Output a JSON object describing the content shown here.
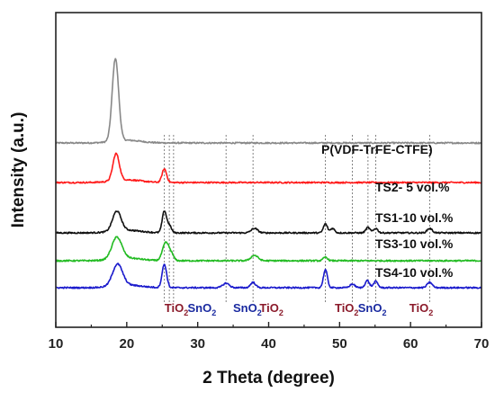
{
  "chart_data": {
    "type": "line",
    "title": "",
    "xlabel": "2 Theta (degree)",
    "ylabel": "Intensity (a.u.)",
    "xlim": [
      10,
      70
    ],
    "xticks": [
      "10",
      "20",
      "30",
      "40",
      "50",
      "60",
      "70"
    ],
    "y_ticks_shown": false,
    "grid": false,
    "legend": "inline labels at right of each curve",
    "series": [
      {
        "name": "P(VDF-TrFE-CTFE)",
        "color": "#888888",
        "peaks": [
          {
            "x": 18.4,
            "height": 92,
            "width": 0.45
          }
        ]
      },
      {
        "name": "TS2- 5 vol.%",
        "color": "#ff1a1a",
        "peaks": [
          {
            "x": 18.5,
            "height": 30,
            "width": 0.45
          },
          {
            "x": 25.3,
            "height": 15,
            "width": 0.32
          }
        ]
      },
      {
        "name": "TS1-10 vol.%",
        "color": "#111111",
        "peaks": [
          {
            "x": 18.6,
            "height": 22,
            "width": 0.6
          },
          {
            "x": 25.3,
            "height": 24,
            "width": 0.3
          },
          {
            "x": 26.0,
            "height": 8,
            "width": 0.3
          },
          {
            "x": 38.0,
            "height": 5,
            "width": 0.45
          },
          {
            "x": 48.0,
            "height": 10,
            "width": 0.28
          },
          {
            "x": 49.0,
            "height": 5,
            "width": 0.3
          },
          {
            "x": 54.0,
            "height": 6,
            "width": 0.3
          },
          {
            "x": 55.1,
            "height": 5,
            "width": 0.3
          },
          {
            "x": 62.7,
            "height": 5,
            "width": 0.35
          }
        ]
      },
      {
        "name": "TS3-10 vol.%",
        "color": "#22bb22",
        "peaks": [
          {
            "x": 18.6,
            "height": 24,
            "width": 0.7
          },
          {
            "x": 25.5,
            "height": 20,
            "width": 0.45
          },
          {
            "x": 26.3,
            "height": 6,
            "width": 0.35
          },
          {
            "x": 38.0,
            "height": 6,
            "width": 0.5
          },
          {
            "x": 48.0,
            "height": 4,
            "width": 0.3
          }
        ]
      },
      {
        "name": "TS4-10 vol.%",
        "color": "#1a1acc",
        "peaks": [
          {
            "x": 18.7,
            "height": 24,
            "width": 0.7
          },
          {
            "x": 25.3,
            "height": 26,
            "width": 0.32
          },
          {
            "x": 34.0,
            "height": 5,
            "width": 0.45
          },
          {
            "x": 37.8,
            "height": 6,
            "width": 0.35
          },
          {
            "x": 48.0,
            "height": 20,
            "width": 0.28
          },
          {
            "x": 51.8,
            "height": 4,
            "width": 0.35
          },
          {
            "x": 53.9,
            "height": 8,
            "width": 0.3
          },
          {
            "x": 55.1,
            "height": 7,
            "width": 0.3
          },
          {
            "x": 62.7,
            "height": 6,
            "width": 0.35
          }
        ]
      }
    ],
    "reference_lines_x": [
      25.3,
      26.0,
      26.6,
      34.0,
      37.8,
      48.0,
      51.8,
      54.0,
      55.1,
      62.7
    ],
    "phase_annotations": [
      {
        "text": "TiO",
        "sub": "2",
        "color": "#8b1a2a",
        "x": 27.0
      },
      {
        "text": "SnO",
        "sub": "2",
        "color": "#1a2aa0",
        "x": 30.6
      },
      {
        "text": "SnO",
        "sub": "2",
        "color": "#1a2aa0",
        "x": 37.0
      },
      {
        "text": "TiO",
        "sub": "2",
        "color": "#8b1a2a",
        "x": 40.4
      },
      {
        "text": "TiO",
        "sub": "2",
        "color": "#8b1a2a",
        "x": 51.0
      },
      {
        "text": "SnO",
        "sub": "2",
        "color": "#1a2aa0",
        "x": 54.6
      },
      {
        "text": "TiO",
        "sub": "2",
        "color": "#8b1a2a",
        "x": 61.5
      }
    ]
  }
}
